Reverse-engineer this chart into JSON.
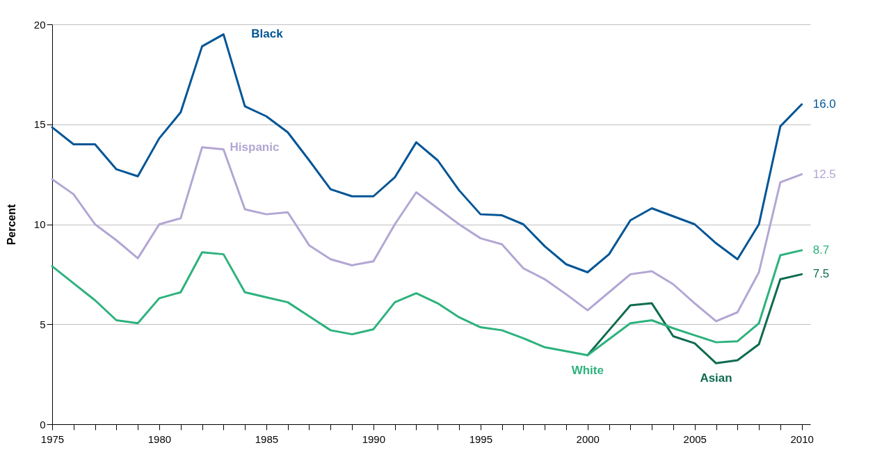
{
  "chart_data": {
    "type": "line",
    "ylabel": "Percent",
    "x": [
      1975,
      1976,
      1977,
      1978,
      1979,
      1980,
      1981,
      1982,
      1983,
      1984,
      1985,
      1986,
      1987,
      1988,
      1989,
      1990,
      1991,
      1992,
      1993,
      1994,
      1995,
      1996,
      1997,
      1998,
      1999,
      2000,
      2001,
      2002,
      2003,
      2004,
      2005,
      2006,
      2007,
      2008,
      2009,
      2010
    ],
    "xlim": [
      1975,
      2010.4
    ],
    "xticks": [
      1975,
      {
        "value": 1976,
        "label": null
      },
      {
        "value": 1977,
        "label": null
      },
      {
        "value": 1978,
        "label": null
      },
      {
        "value": 1979,
        "label": null
      },
      1980,
      {
        "value": 1981,
        "label": null
      },
      {
        "value": 1982,
        "label": null
      },
      {
        "value": 1983,
        "label": null
      },
      {
        "value": 1984,
        "label": null
      },
      1985,
      {
        "value": 1986,
        "label": null
      },
      {
        "value": 1987,
        "label": null
      },
      {
        "value": 1988,
        "label": null
      },
      {
        "value": 1989,
        "label": null
      },
      1990,
      {
        "value": 1991,
        "label": null
      },
      {
        "value": 1992,
        "label": null
      },
      {
        "value": 1993,
        "label": null
      },
      {
        "value": 1994,
        "label": null
      },
      1995,
      {
        "value": 1996,
        "label": null
      },
      {
        "value": 1997,
        "label": null
      },
      {
        "value": 1998,
        "label": null
      },
      {
        "value": 1999,
        "label": null
      },
      2000,
      {
        "value": 2001,
        "label": null
      },
      {
        "value": 2002,
        "label": null
      },
      {
        "value": 2003,
        "label": null
      },
      {
        "value": 2004,
        "label": null
      },
      2005,
      {
        "value": 2006,
        "label": null
      },
      {
        "value": 2007,
        "label": null
      },
      {
        "value": 2008,
        "label": null
      },
      {
        "value": 2009,
        "label": null
      },
      2010
    ],
    "ylim": [
      0,
      20
    ],
    "yticks": [
      0,
      5,
      10,
      15,
      20
    ],
    "grid": "y",
    "legend": false,
    "marker": "none",
    "line_style": "solid",
    "series": [
      {
        "name": "Black",
        "color": "#005596",
        "values": [
          14.85,
          14.0,
          14.0,
          12.75,
          12.4,
          14.3,
          15.6,
          18.9,
          19.5,
          15.9,
          15.4,
          14.6,
          13.2,
          11.75,
          11.4,
          11.4,
          12.35,
          14.1,
          13.2,
          11.7,
          10.5,
          10.45,
          10.0,
          8.9,
          8.0,
          7.6,
          8.5,
          10.2,
          10.8,
          10.4,
          10.0,
          9.05,
          8.25,
          10.0,
          14.9,
          16.0
        ],
        "value_labels": [
          null,
          null,
          null,
          null,
          null,
          null,
          null,
          null,
          null,
          null,
          null,
          null,
          null,
          null,
          null,
          null,
          null,
          null,
          null,
          null,
          null,
          null,
          null,
          null,
          null,
          null,
          null,
          null,
          null,
          null,
          null,
          null,
          null,
          null,
          null,
          "16.0"
        ]
      },
      {
        "name": "Hispanic",
        "color": "#b3a6d4",
        "values": [
          12.25,
          11.5,
          10.0,
          9.2,
          8.3,
          10.0,
          10.3,
          13.85,
          13.75,
          10.75,
          10.5,
          10.6,
          8.95,
          8.25,
          7.95,
          8.15,
          10.0,
          11.6,
          10.8,
          10.0,
          9.3,
          9.0,
          7.8,
          7.25,
          6.5,
          5.7,
          6.6,
          7.5,
          7.65,
          7.0,
          6.05,
          5.15,
          5.6,
          7.6,
          12.1,
          12.5
        ],
        "value_labels": [
          null,
          null,
          null,
          null,
          null,
          null,
          null,
          null,
          null,
          null,
          null,
          null,
          null,
          null,
          null,
          null,
          null,
          null,
          null,
          null,
          null,
          null,
          null,
          null,
          null,
          null,
          null,
          null,
          null,
          null,
          null,
          null,
          null,
          null,
          null,
          "12.5"
        ]
      },
      {
        "name": "Asian",
        "color": "#0e6b50",
        "values": [
          null,
          null,
          null,
          null,
          null,
          null,
          null,
          null,
          null,
          null,
          null,
          null,
          null,
          null,
          null,
          null,
          null,
          null,
          null,
          null,
          null,
          null,
          null,
          null,
          null,
          3.45,
          4.7,
          5.95,
          6.05,
          4.4,
          4.05,
          3.05,
          3.2,
          4.0,
          7.25,
          7.5
        ],
        "value_labels": [
          null,
          null,
          null,
          null,
          null,
          null,
          null,
          null,
          null,
          null,
          null,
          null,
          null,
          null,
          null,
          null,
          null,
          null,
          null,
          null,
          null,
          null,
          null,
          null,
          null,
          null,
          null,
          null,
          null,
          null,
          null,
          null,
          null,
          null,
          null,
          "7.5"
        ]
      },
      {
        "name": "White",
        "color": "#2db27d",
        "values": [
          7.9,
          7.05,
          6.2,
          5.2,
          5.05,
          6.3,
          6.6,
          8.6,
          8.5,
          6.6,
          6.35,
          6.1,
          5.4,
          4.7,
          4.5,
          4.75,
          6.1,
          6.55,
          6.05,
          5.35,
          4.85,
          4.7,
          4.3,
          3.85,
          3.65,
          3.45,
          4.25,
          5.05,
          5.2,
          4.8,
          4.45,
          4.1,
          4.15,
          5.05,
          8.45,
          8.7
        ],
        "value_labels": [
          null,
          null,
          null,
          null,
          null,
          null,
          null,
          null,
          null,
          null,
          null,
          null,
          null,
          null,
          null,
          null,
          null,
          null,
          null,
          null,
          null,
          null,
          null,
          null,
          null,
          null,
          null,
          null,
          null,
          null,
          null,
          null,
          null,
          null,
          null,
          "8.7"
        ]
      }
    ]
  }
}
